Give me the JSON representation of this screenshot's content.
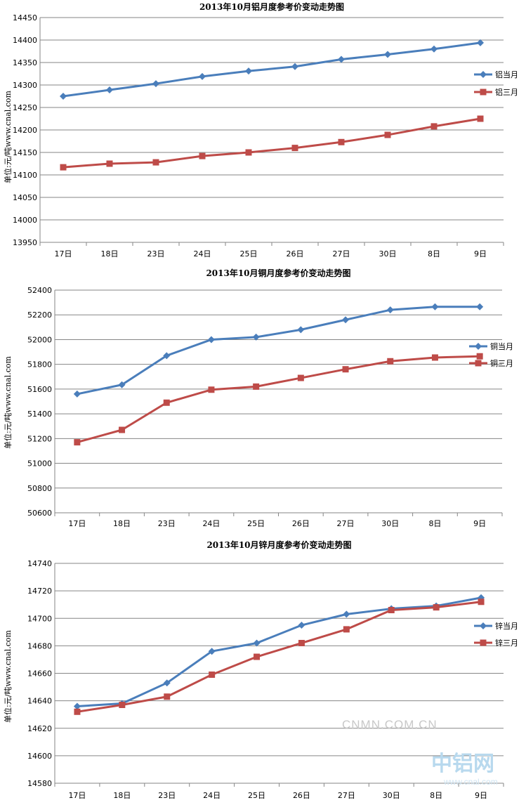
{
  "colors": {
    "current": "#4a7ebb",
    "three": "#be4b48",
    "grid": "#868686",
    "axis": "#868686"
  },
  "chart_data": [
    {
      "type": "line",
      "title": "2013年10月铝月度参考价变动走势图",
      "ylabel": "单位:元/吨www.cnal.com",
      "categories": [
        "17日",
        "18日",
        "23日",
        "24日",
        "25日",
        "26日",
        "27日",
        "30日",
        "8日",
        "9日"
      ],
      "ylim": [
        13950,
        14450
      ],
      "ystep": 50,
      "grid": true,
      "legend": "right",
      "series": [
        {
          "name": "铝当月",
          "marker": "diamond",
          "values": [
            14275,
            14289,
            14303,
            14319,
            14331,
            14341,
            14357,
            14368,
            14380,
            14394
          ]
        },
        {
          "name": "铝三月",
          "marker": "square",
          "values": [
            14117,
            14125,
            14128,
            14142,
            14150,
            14160,
            14173,
            14189,
            14208,
            14225
          ]
        }
      ]
    },
    {
      "type": "line",
      "title": "2013年10月铜月度参考价变动走势图",
      "ylabel": "单位:元/吨www.cnal.com",
      "categories": [
        "17日",
        "18日",
        "23日",
        "24日",
        "25日",
        "26日",
        "27日",
        "30日",
        "8日",
        "9日"
      ],
      "ylim": [
        50600,
        52400
      ],
      "ystep": 200,
      "grid": true,
      "legend": "right",
      "series": [
        {
          "name": "铜当月",
          "marker": "diamond",
          "values": [
            51560,
            51635,
            51870,
            52000,
            52020,
            52080,
            52160,
            52240,
            52265,
            52265
          ]
        },
        {
          "name": "铜三月",
          "marker": "square",
          "values": [
            51170,
            51270,
            51490,
            51595,
            51620,
            51690,
            51760,
            51825,
            51855,
            51865
          ]
        }
      ]
    },
    {
      "type": "line",
      "title": "2013年10月锌月度参考价变动走势图",
      "ylabel": "单位:元/吨www.cnal.com",
      "categories": [
        "17日",
        "18日",
        "23日",
        "24日",
        "25日",
        "26日",
        "27日",
        "30日",
        "8日",
        "9日"
      ],
      "ylim": [
        14580,
        14740
      ],
      "ystep": 20,
      "grid": true,
      "legend": "right",
      "series": [
        {
          "name": "锌当月",
          "marker": "diamond",
          "values": [
            14636,
            14638,
            14653,
            14676,
            14682,
            14695,
            14703,
            14707,
            14709,
            14715
          ]
        },
        {
          "name": "锌三月",
          "marker": "square",
          "values": [
            14632,
            14637,
            14643,
            14659,
            14672,
            14682,
            14692,
            14706,
            14708,
            14712
          ]
        }
      ]
    }
  ],
  "watermark": {
    "site": "CNMN.COM.CN",
    "logo": "中铝网",
    "url": "www.cnal.com"
  }
}
